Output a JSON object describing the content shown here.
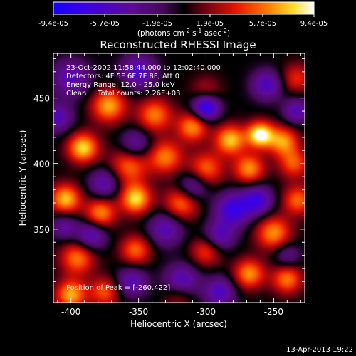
{
  "chart_data": {
    "type": "heatmap",
    "title": "Reconstructed RHESSI Image",
    "xlabel": "Heliocentric X (arcsec)",
    "ylabel": "Heliocentric Y (arcsec)",
    "xlim": [
      -413,
      -227
    ],
    "ylim": [
      294,
      484
    ],
    "x_ticks": [
      -400,
      -350,
      -300,
      -250
    ],
    "y_ticks": [
      350,
      400,
      450
    ],
    "colorbar": {
      "unit_label": "(photons cm",
      "unit_sup1": "-2",
      "unit_mid": " s",
      "unit_sup2": "-1",
      "unit_mid2": " asec",
      "unit_sup3": "-2",
      "unit_end": ")",
      "min": -9.4e-05,
      "max": 9.4e-05,
      "tick_labels": [
        "-9.4e-05",
        "-5.7e-05",
        "-1.9e-05",
        "1.9e-05",
        "5.7e-05",
        "9.4e-05"
      ]
    },
    "annotations": {
      "line1": "23-Oct-2002 11:58:44.000 to 12:02:40.000",
      "line2": "Detectors: 4F 5F 6F 7F 8F, Att 0",
      "line3": "Energy Range: 12.0 - 25.0 keV",
      "line4": "Clean     Total counts: 2.26E+03",
      "peak": "Position of Peak = [-260,422]"
    },
    "peak": {
      "x": -260,
      "y": 422
    },
    "blobs": [
      {
        "x": -260,
        "y": 422,
        "amp": 9.4e-05,
        "s": 7
      },
      {
        "x": -372,
        "y": 444,
        "amp": 7e-05,
        "s": 9
      },
      {
        "x": -338,
        "y": 437,
        "amp": 6e-05,
        "s": 9
      },
      {
        "x": -310,
        "y": 428,
        "amp": 6.5e-05,
        "s": 8
      },
      {
        "x": -282,
        "y": 418,
        "amp": 7.5e-05,
        "s": 8
      },
      {
        "x": -243,
        "y": 417,
        "amp": 6.5e-05,
        "s": 8
      },
      {
        "x": -391,
        "y": 412,
        "amp": 8e-05,
        "s": 8
      },
      {
        "x": -357,
        "y": 398,
        "amp": 5.5e-05,
        "s": 10
      },
      {
        "x": -330,
        "y": 405,
        "amp": 6e-05,
        "s": 9
      },
      {
        "x": -300,
        "y": 396,
        "amp": 5.5e-05,
        "s": 9
      },
      {
        "x": -268,
        "y": 396,
        "amp": 6.5e-05,
        "s": 8
      },
      {
        "x": -235,
        "y": 400,
        "amp": 5e-05,
        "s": 8
      },
      {
        "x": -404,
        "y": 373,
        "amp": 7.5e-05,
        "s": 8
      },
      {
        "x": -378,
        "y": 362,
        "amp": 6.5e-05,
        "s": 8
      },
      {
        "x": -352,
        "y": 373,
        "amp": 8e-05,
        "s": 8
      },
      {
        "x": -318,
        "y": 370,
        "amp": 6e-05,
        "s": 9
      },
      {
        "x": -250,
        "y": 347,
        "amp": 6.5e-05,
        "s": 9
      },
      {
        "x": -232,
        "y": 372,
        "amp": 5.5e-05,
        "s": 8
      },
      {
        "x": -395,
        "y": 328,
        "amp": 6e-05,
        "s": 9
      },
      {
        "x": -352,
        "y": 334,
        "amp": 5.5e-05,
        "s": 8
      },
      {
        "x": -300,
        "y": 333,
        "amp": 4.5e-05,
        "s": 8
      },
      {
        "x": -268,
        "y": 316,
        "amp": 6.5e-05,
        "s": 8
      },
      {
        "x": -240,
        "y": 312,
        "amp": 6e-05,
        "s": 8
      },
      {
        "x": -400,
        "y": 300,
        "amp": 7e-05,
        "s": 8
      },
      {
        "x": -375,
        "y": 302,
        "amp": 5e-05,
        "s": 8
      },
      {
        "x": -320,
        "y": 300,
        "amp": 3.5e-05,
        "s": 8
      },
      {
        "x": -300,
        "y": 455,
        "amp": 3e-05,
        "s": 8
      },
      {
        "x": -233,
        "y": 465,
        "amp": 4e-05,
        "s": 8
      },
      {
        "x": -300,
        "y": 443,
        "amp": -9e-05,
        "s": 7
      },
      {
        "x": -350,
        "y": 470,
        "amp": -6e-05,
        "s": 9
      },
      {
        "x": -400,
        "y": 465,
        "amp": -5e-05,
        "s": 10
      },
      {
        "x": -255,
        "y": 460,
        "amp": -5.5e-05,
        "s": 8
      },
      {
        "x": -352,
        "y": 415,
        "amp": -4.5e-05,
        "s": 8
      },
      {
        "x": -233,
        "y": 440,
        "amp": -5e-05,
        "s": 7
      },
      {
        "x": -310,
        "y": 382,
        "amp": -5e-05,
        "s": 8
      },
      {
        "x": -280,
        "y": 365,
        "amp": -7e-05,
        "s": 9
      },
      {
        "x": -262,
        "y": 372,
        "amp": -6.5e-05,
        "s": 8
      },
      {
        "x": -330,
        "y": 350,
        "amp": -5e-05,
        "s": 9
      },
      {
        "x": -385,
        "y": 345,
        "amp": -5.5e-05,
        "s": 8
      },
      {
        "x": -290,
        "y": 345,
        "amp": -5e-05,
        "s": 8
      },
      {
        "x": -375,
        "y": 385,
        "amp": -5e-05,
        "s": 8
      },
      {
        "x": -405,
        "y": 352,
        "amp": -4e-05,
        "s": 7
      },
      {
        "x": -318,
        "y": 310,
        "amp": -6e-05,
        "s": 9
      },
      {
        "x": -355,
        "y": 310,
        "amp": -5e-05,
        "s": 8
      },
      {
        "x": -290,
        "y": 302,
        "amp": -5.5e-05,
        "s": 8
      },
      {
        "x": -240,
        "y": 330,
        "amp": -3.5e-05,
        "s": 7
      },
      {
        "x": -410,
        "y": 435,
        "amp": -5e-05,
        "s": 8
      }
    ]
  },
  "footer": {
    "date": "13-Apr-2013 19:22"
  }
}
